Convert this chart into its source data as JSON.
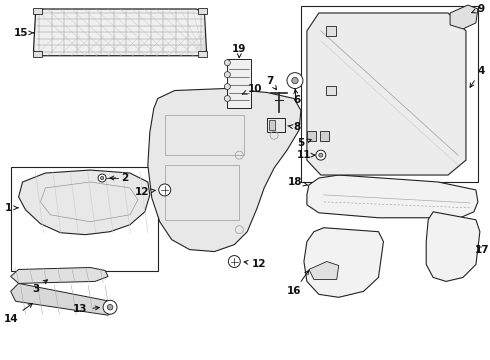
{
  "bg_color": "#ffffff",
  "lc": "#222222",
  "fig_width": 4.9,
  "fig_height": 3.6,
  "dpi": 100
}
